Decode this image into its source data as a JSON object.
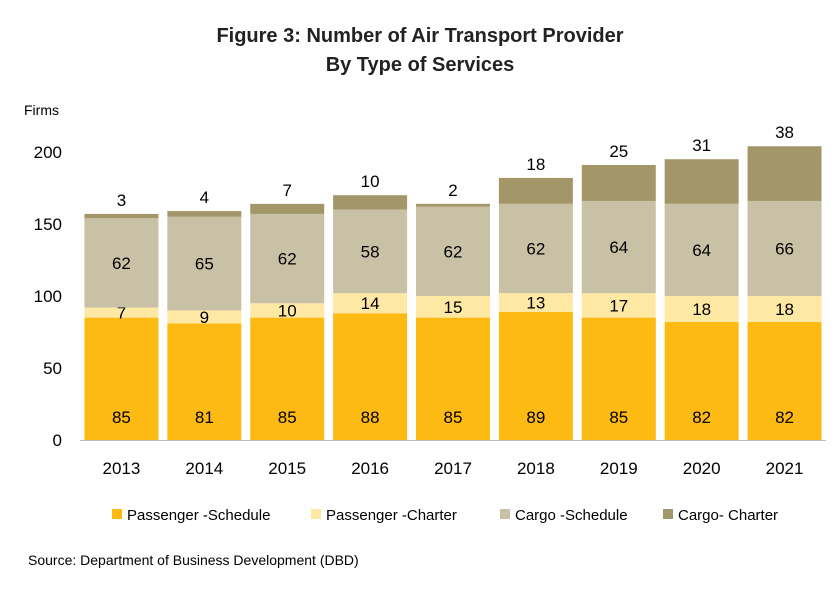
{
  "chart_data": {
    "type": "bar",
    "stacked": true,
    "title": "Figure 3: Number of Air Transport Provider",
    "subtitle": "By Type of Services",
    "ylabel": "Firms",
    "xlabel": "",
    "ylim": [
      0,
      200
    ],
    "yticks": [
      0,
      50,
      100,
      150,
      200
    ],
    "grid": false,
    "legend_position": "bottom",
    "categories": [
      "2013",
      "2014",
      "2015",
      "2016",
      "2017",
      "2018",
      "2019",
      "2020",
      "2021"
    ],
    "series": [
      {
        "name": "Passenger -Schedule",
        "color": "#FDBA12",
        "values": [
          85,
          81,
          85,
          88,
          85,
          89,
          85,
          82,
          82
        ]
      },
      {
        "name": "Passenger -Charter",
        "color": "#FEE8A4",
        "values": [
          7,
          9,
          10,
          14,
          15,
          13,
          17,
          18,
          18
        ]
      },
      {
        "name": "Cargo -Schedule",
        "color": "#C9C1A5",
        "values": [
          62,
          65,
          62,
          58,
          62,
          62,
          64,
          64,
          66
        ]
      },
      {
        "name": "Cargo- Charter",
        "color": "#A3976A",
        "values": [
          3,
          4,
          7,
          10,
          2,
          18,
          25,
          31,
          38
        ]
      }
    ],
    "source": "Source: Department of Business Development (DBD)"
  }
}
